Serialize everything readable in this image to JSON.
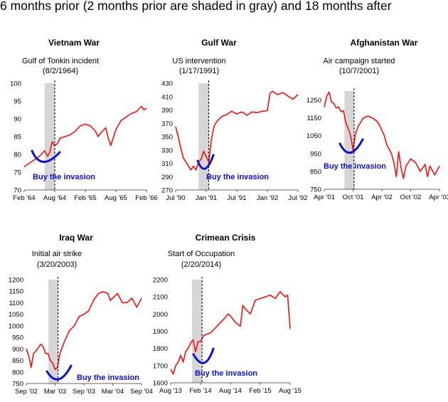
{
  "page_title": "6 months prior (2 months prior are shaded in gray) and 18 months after",
  "colors": {
    "series": "#ee1111",
    "shade": "#d6d6d6",
    "buy": "#1010c8",
    "vline": "#000000"
  },
  "chart_data": [
    {
      "type": "line",
      "title": "Vietnam War",
      "annotation": [
        "Gulf of Tonkin incident",
        "(8/2/1964)"
      ],
      "ylim": [
        70,
        100
      ],
      "yticks": [
        70,
        75,
        80,
        85,
        90,
        95,
        100
      ],
      "xticks": [
        "Feb '64",
        "Aug '64",
        "Feb '65",
        "Aug '65",
        "Feb '66"
      ],
      "xlim": [
        0,
        24
      ],
      "event_x": 6,
      "shade": [
        4,
        6
      ],
      "buy_label": "Buy the invasion",
      "series": [
        {
          "x": [
            0,
            1,
            2,
            3,
            4,
            4.6,
            5,
            5.5,
            6,
            6.5,
            7,
            8,
            9,
            10,
            11,
            12,
            13,
            14,
            14.5,
            15,
            16,
            16.5,
            17,
            18,
            19,
            20,
            21,
            22,
            23,
            23.5,
            24
          ],
          "y": [
            76.5,
            77.5,
            78.5,
            79.5,
            81,
            79.5,
            80.5,
            83.5,
            82.5,
            83,
            84.5,
            85,
            85.5,
            86.5,
            88,
            88.5,
            88,
            86.5,
            85,
            86,
            87.5,
            84.5,
            82.5,
            87,
            89.5,
            90.5,
            91.5,
            92,
            93.5,
            92.5,
            93
          ]
        }
      ]
    },
    {
      "type": "line",
      "title": "Gulf War",
      "annotation": [
        "US intervention",
        "(1/17/1991)"
      ],
      "ylim": [
        270,
        430
      ],
      "yticks": [
        270,
        290,
        310,
        330,
        350,
        370,
        390,
        410,
        430
      ],
      "xticks": [
        "Jul '90",
        "Jan '91",
        "Jul '91",
        "Jan '92",
        "Jul '92"
      ],
      "xlim": [
        0,
        24
      ],
      "event_x": 6.5,
      "shade": [
        4.5,
        6.5
      ],
      "buy_label": "Buy the invasion",
      "series": [
        {
          "x": [
            0,
            0.5,
            1,
            1.5,
            2,
            3,
            3.5,
            4,
            4.5,
            5,
            5.5,
            6,
            6.5,
            7,
            7.5,
            8,
            9,
            10,
            11,
            12,
            13,
            14,
            15,
            16,
            17,
            18,
            18.5,
            19,
            20,
            21,
            22,
            23,
            24
          ],
          "y": [
            365,
            350,
            333,
            318,
            312,
            300,
            306,
            300,
            312,
            316,
            328,
            320,
            312,
            345,
            365,
            372,
            380,
            383,
            388,
            384,
            387,
            382,
            387,
            386,
            388,
            389,
            415,
            418,
            413,
            416,
            411,
            406,
            413
          ]
        }
      ]
    },
    {
      "type": "line",
      "title": "Afghanistan War",
      "annotation": [
        "Air campaign started",
        "(10/7/2001)"
      ],
      "ylim": [
        750,
        1300
      ],
      "yticks": [
        750,
        850,
        950,
        1050,
        1150,
        1250
      ],
      "xticks": [
        "Apr '01",
        "Oct '01",
        "Apr '02",
        "Oct '02",
        "Apr '03"
      ],
      "xlim": [
        0,
        24
      ],
      "event_x": 6.2,
      "shade": [
        4.2,
        6.2
      ],
      "buy_label": "Buy the invasion",
      "series": [
        {
          "x": [
            0,
            0.5,
            1,
            1.5,
            2,
            2.5,
            3,
            3.5,
            4,
            4.5,
            5,
            5.5,
            6,
            6.5,
            7,
            8,
            9,
            10,
            11,
            11.5,
            12,
            12.5,
            13,
            14,
            14.5,
            15,
            15.5,
            16,
            16.5,
            17,
            18,
            19,
            20,
            21,
            21.5,
            22,
            23,
            24
          ],
          "y": [
            1210,
            1270,
            1295,
            1240,
            1230,
            1205,
            1210,
            1185,
            1190,
            1120,
            1090,
            1050,
            970,
            1060,
            1100,
            1145,
            1160,
            1150,
            1130,
            1110,
            1080,
            1050,
            1000,
            950,
            900,
            820,
            960,
            870,
            810,
            880,
            920,
            900,
            850,
            890,
            820,
            880,
            830,
            880
          ]
        }
      ]
    },
    {
      "type": "line",
      "title": "Iraq War",
      "annotation": [
        "Initial air strike",
        "(3/20/2003)"
      ],
      "ylim": [
        750,
        1200
      ],
      "yticks": [
        750,
        800,
        850,
        900,
        950,
        1000,
        1050,
        1100,
        1150,
        1200
      ],
      "xticks": [
        "Sep '02",
        "Mar '03",
        "Sep '03",
        "Mar '04",
        "Sep '04"
      ],
      "xlim": [
        0,
        24
      ],
      "event_x": 6.6,
      "shade": [
        4.6,
        6.6
      ],
      "buy_label": "Buy the invasion",
      "series": [
        {
          "x": [
            0,
            0.5,
            1,
            1.5,
            2,
            3,
            3.5,
            4,
            4.5,
            5,
            5.5,
            6,
            6.5,
            7,
            8,
            9,
            10,
            11,
            12,
            13,
            14,
            15,
            16,
            17,
            17.5,
            18,
            19,
            20,
            21,
            22,
            23,
            24
          ],
          "y": [
            900,
            870,
            820,
            880,
            890,
            920,
            910,
            880,
            880,
            850,
            838,
            810,
            820,
            880,
            935,
            980,
            1000,
            1040,
            1050,
            1065,
            1110,
            1140,
            1148,
            1140,
            1110,
            1120,
            1140,
            1100,
            1100,
            1120,
            1080,
            1120
          ]
        }
      ]
    },
    {
      "type": "line",
      "title": "Crimean Crisis",
      "annotation": [
        "Start of Occupation",
        "(2/20/2014)"
      ],
      "ylim": [
        1600,
        2200
      ],
      "yticks": [
        1600,
        1700,
        1800,
        1900,
        2000,
        2100,
        2200
      ],
      "xticks": [
        "Aug '13",
        "Feb '14",
        "Aug '14",
        "Feb '15",
        "Aug '15"
      ],
      "xlim": [
        0,
        24
      ],
      "event_x": 6.3,
      "shade": [
        4.3,
        6.3
      ],
      "buy_label": "Buy the invasion",
      "series": [
        {
          "x": [
            0,
            0.5,
            1,
            1.5,
            2,
            2.5,
            3,
            3.5,
            4,
            4.5,
            5,
            5.5,
            6,
            6.5,
            7,
            8,
            9,
            10,
            11,
            11.5,
            12,
            13,
            14,
            14.5,
            15,
            16,
            17,
            18,
            19,
            20,
            21,
            22,
            23,
            23.5,
            24
          ],
          "y": [
            1680,
            1650,
            1700,
            1720,
            1760,
            1720,
            1780,
            1800,
            1830,
            1850,
            1780,
            1840,
            1840,
            1870,
            1880,
            1890,
            1920,
            1950,
            1980,
            2000,
            1990,
            1950,
            1930,
            2050,
            2030,
            2000,
            2080,
            2090,
            2100,
            2110,
            2090,
            2130,
            2100,
            2110,
            1915
          ]
        }
      ]
    }
  ]
}
